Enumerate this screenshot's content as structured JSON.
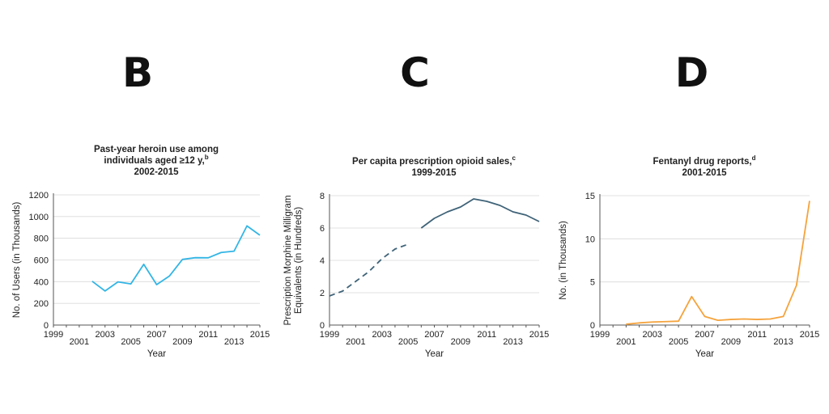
{
  "panels": [
    {
      "letter": "B"
    },
    {
      "letter": "C"
    },
    {
      "letter": "D"
    }
  ],
  "colors": {
    "heroin": "#33b5e5",
    "opioid": "#3f6378",
    "fentanyl": "#f5a33c"
  },
  "chart_data": [
    {
      "type": "line",
      "title": [
        "Past-year heroin use among",
        "individuals aged ≥12 y,",
        "2002-2015"
      ],
      "title_superscript": "b",
      "xlabel": "Year",
      "ylabel": "No. of Users (in Thousands)",
      "xlim": [
        1999,
        2015
      ],
      "ylim": [
        0,
        1200
      ],
      "x_ticks": [
        1999,
        2001,
        2003,
        2005,
        2007,
        2009,
        2011,
        2013,
        2015
      ],
      "y_ticks": [
        0,
        200,
        400,
        600,
        800,
        1000,
        1200
      ],
      "grid": true,
      "series": [
        {
          "x": [
            2002,
            2003,
            2004,
            2005,
            2006,
            2007,
            2008,
            2009,
            2010,
            2011,
            2012,
            2013,
            2014,
            2015
          ],
          "values": [
            404,
            314,
            398,
            379,
            560,
            373,
            453,
            605,
            621,
            620,
            669,
            681,
            914,
            828
          ],
          "style": "solid"
        }
      ]
    },
    {
      "type": "line",
      "title": [
        "Per capita prescription opioid sales,",
        "1999-2015"
      ],
      "title_superscript": "c",
      "xlabel": "Year",
      "ylabel": [
        "Prescription Morphine Milligram",
        "Equivalents (in Hundreds)"
      ],
      "xlim": [
        1999,
        2015
      ],
      "ylim": [
        0,
        8
      ],
      "x_ticks": [
        1999,
        2001,
        2003,
        2005,
        2007,
        2009,
        2011,
        2013,
        2015
      ],
      "y_ticks": [
        0,
        2,
        4,
        6,
        8
      ],
      "grid": true,
      "series": [
        {
          "x": [
            1999,
            2000,
            2001,
            2002,
            2003,
            2004,
            2005
          ],
          "values": [
            1.8,
            2.1,
            2.7,
            3.3,
            4.1,
            4.7,
            5.0
          ],
          "style": "dashed"
        },
        {
          "x": [
            2006,
            2007,
            2008,
            2009,
            2010,
            2011,
            2012,
            2013,
            2014,
            2015
          ],
          "values": [
            6.0,
            6.6,
            7.0,
            7.3,
            7.8,
            7.65,
            7.4,
            7.0,
            6.8,
            6.4
          ],
          "style": "solid"
        }
      ]
    },
    {
      "type": "line",
      "title": [
        "Fentanyl drug reports,",
        "2001-2015"
      ],
      "title_superscript": "d",
      "xlabel": "Year",
      "ylabel": "No. (in Thousands)",
      "xlim": [
        1999,
        2015
      ],
      "ylim": [
        0,
        15
      ],
      "x_ticks": [
        1999,
        2001,
        2003,
        2005,
        2007,
        2009,
        2011,
        2013,
        2015
      ],
      "y_ticks": [
        0,
        5,
        10,
        15
      ],
      "grid": true,
      "series": [
        {
          "x": [
            2001,
            2002,
            2003,
            2004,
            2005,
            2006,
            2007,
            2008,
            2009,
            2010,
            2011,
            2012,
            2013,
            2014,
            2015
          ],
          "values": [
            0.1,
            0.25,
            0.35,
            0.4,
            0.45,
            3.3,
            1.0,
            0.55,
            0.65,
            0.7,
            0.65,
            0.7,
            1.0,
            4.6,
            14.4
          ],
          "style": "solid"
        }
      ]
    }
  ]
}
